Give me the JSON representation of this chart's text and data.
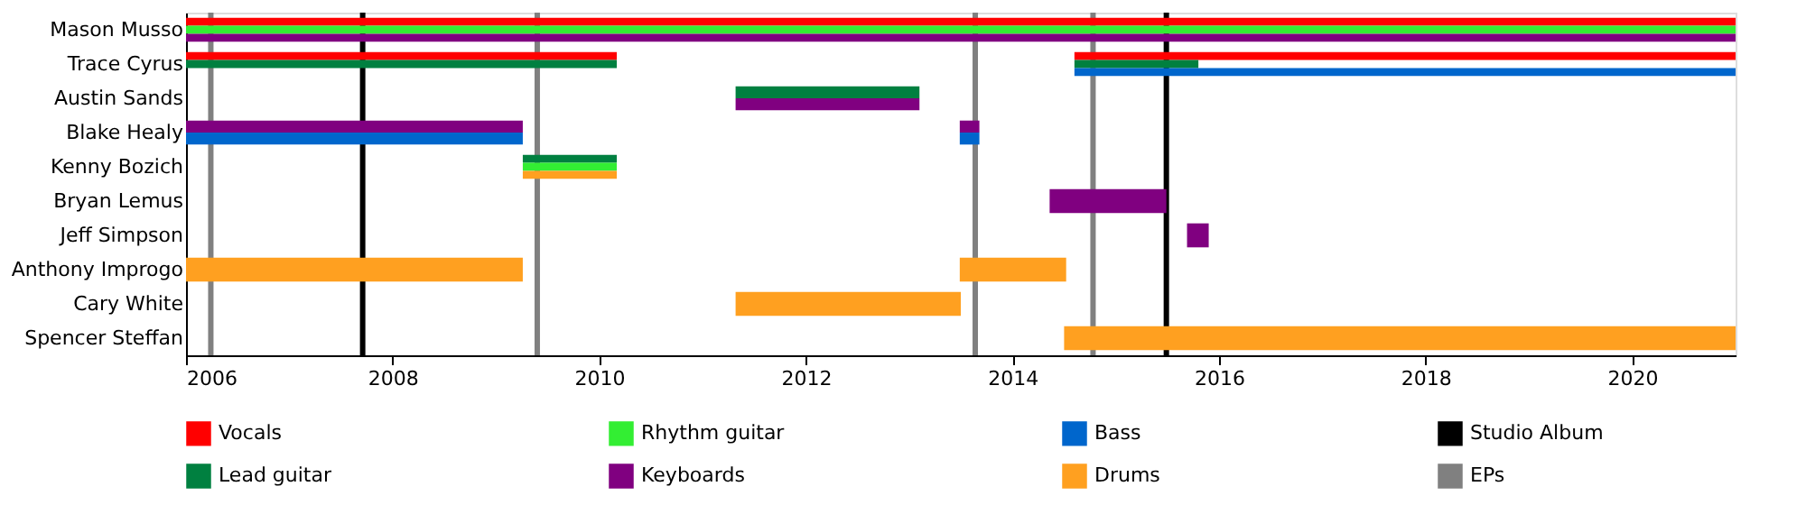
{
  "chart_data": {
    "type": "bar",
    "orientation": "horizontal",
    "categories": [
      "Mason Musso",
      "Trace Cyrus",
      "Austin Sands",
      "Blake Healy",
      "Kenny Bozich",
      "Bryan Lemus",
      "Jeff Simpson",
      "Anthony Improgo",
      "Cary White",
      "Spencer Steffan"
    ],
    "series": [
      {
        "name": "Vocals",
        "color": "#ff0000",
        "base": [
          2006,
          2006,
          null,
          null,
          null,
          null,
          null,
          null,
          null,
          null
        ],
        "values": [
          15.0,
          4.17,
          null,
          null,
          null,
          null,
          null,
          null,
          null,
          null
        ]
      },
      {
        "color": "#ff0000",
        "base": [
          null,
          2014.6,
          null,
          null,
          null,
          null,
          null,
          null,
          null,
          null
        ],
        "values": [
          null,
          6.4,
          null,
          null,
          null,
          null,
          null,
          null,
          null,
          null
        ]
      },
      {
        "name": "Lead guitar",
        "color": "#008040",
        "base": [
          null,
          2006,
          2011.32,
          null,
          2009.26,
          null,
          null,
          null,
          null,
          null
        ],
        "values": [
          null,
          4.17,
          1.78,
          null,
          0.91,
          null,
          null,
          null,
          null,
          null
        ]
      },
      {
        "color": "#008040",
        "base": [
          null,
          2014.6,
          null,
          null,
          null,
          null,
          null,
          null,
          null,
          null
        ],
        "values": [
          null,
          1.2,
          null,
          null,
          null,
          null,
          null,
          null,
          null,
          null
        ]
      },
      {
        "name": "Rhythm guitar",
        "color": "#33ee33",
        "base": [
          2006,
          null,
          null,
          null,
          2009.26,
          null,
          null,
          null,
          null,
          null
        ],
        "values": [
          15.0,
          null,
          null,
          null,
          0.91,
          null,
          null,
          null,
          null,
          null
        ]
      },
      {
        "name": "Keyboards",
        "color": "#800080",
        "base": [
          2006,
          null,
          2011.32,
          2006,
          null,
          2014.36,
          2015.69,
          null,
          null,
          null
        ],
        "values": [
          15.0,
          null,
          1.78,
          3.26,
          null,
          1.13,
          0.21,
          null,
          null,
          null
        ]
      },
      {
        "color": "#800080",
        "base": [
          null,
          null,
          null,
          2013.49,
          null,
          null,
          null,
          null,
          null,
          null
        ],
        "values": [
          null,
          null,
          null,
          0.19,
          null,
          null,
          null,
          null,
          null,
          null
        ]
      },
      {
        "name": "Bass",
        "color": "#0066cc",
        "base": [
          null,
          2014.6,
          null,
          2006,
          null,
          null,
          null,
          null,
          null,
          null
        ],
        "values": [
          null,
          6.4,
          null,
          3.26,
          null,
          null,
          null,
          null,
          null,
          null
        ]
      },
      {
        "color": "#0066cc",
        "base": [
          null,
          null,
          null,
          2013.49,
          null,
          null,
          null,
          null,
          null,
          null
        ],
        "values": [
          null,
          null,
          null,
          0.19,
          null,
          null,
          null,
          null,
          null,
          null
        ]
      },
      {
        "name": "Drums",
        "color": "#ffa020",
        "base": [
          null,
          null,
          null,
          null,
          2009.26,
          null,
          null,
          2006,
          2011.32,
          2014.5
        ],
        "values": [
          null,
          null,
          null,
          null,
          0.91,
          null,
          null,
          3.26,
          2.18,
          6.5
        ]
      },
      {
        "color": "#ffa020",
        "base": [
          null,
          null,
          null,
          null,
          null,
          null,
          null,
          2013.49,
          null,
          null
        ],
        "values": [
          null,
          null,
          null,
          null,
          null,
          null,
          null,
          1.03,
          null,
          null
        ]
      }
    ],
    "xlim": [
      2006,
      2021
    ],
    "xticks": [
      2006,
      2008,
      2010,
      2012,
      2014,
      2016,
      2018,
      2020
    ],
    "ref_lines": [
      {
        "axis": "x",
        "value": 2007.71,
        "label": "Studio Album",
        "color": "#000000"
      },
      {
        "axis": "x",
        "value": 2015.49,
        "color": "#000000"
      },
      {
        "axis": "x",
        "value": 2006.24,
        "label": "EPs",
        "color": "#808080"
      },
      {
        "axis": "x",
        "value": 2009.4,
        "color": "#808080"
      },
      {
        "axis": "x",
        "value": 2013.64,
        "color": "#808080"
      },
      {
        "axis": "x",
        "value": 2014.78,
        "color": "#808080"
      }
    ],
    "grid": false,
    "legend": "bottom"
  }
}
